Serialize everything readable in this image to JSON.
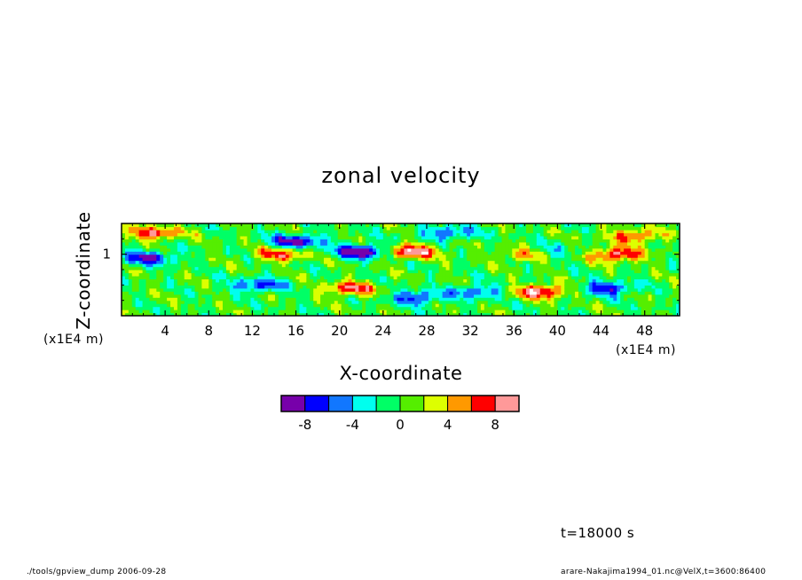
{
  "chart_data": {
    "type": "heatmap",
    "title": "zonal velocity",
    "xlabel": "X-coordinate",
    "ylabel": "Z-coordinate",
    "x_unit": "(x1E4 m)",
    "y_unit": "(x1E4 m)",
    "xlim": [
      0,
      51.2
    ],
    "ylim": [
      0,
      1.5
    ],
    "x_ticks": [
      4,
      8,
      12,
      16,
      20,
      24,
      28,
      32,
      36,
      40,
      44,
      48
    ],
    "x_tick_labels": [
      "4",
      "8",
      "12",
      "16",
      "20",
      "24",
      "28",
      "32",
      "36",
      "40",
      "44",
      "48"
    ],
    "y_ticks": [
      1
    ],
    "y_tick_labels": [
      "1"
    ],
    "colorbar": {
      "levels": [
        -10,
        -8,
        -6,
        -4,
        -2,
        0,
        2,
        4,
        6,
        8,
        10
      ],
      "tick_values": [
        -8,
        -4,
        0,
        4,
        8
      ],
      "tick_labels": [
        "-8",
        "-4",
        "0",
        "4",
        "8"
      ],
      "colors": [
        "#7700aa",
        "#0000ff",
        "#1177ff",
        "#00ffee",
        "#00ff66",
        "#55ee00",
        "#ddff00",
        "#ff9900",
        "#ff0000",
        "#ff9999"
      ],
      "over_color": "#ffffff"
    },
    "time_label": "t=18000 s",
    "features": [
      {
        "x": 26.5,
        "z": 1.05,
        "value": 10
      },
      {
        "x": 37.5,
        "z": 1.0,
        "value": 11
      },
      {
        "x": 22.0,
        "z": 1.05,
        "value": -11
      },
      {
        "x": 38.5,
        "z": 1.02,
        "value": -9
      },
      {
        "x": 14.5,
        "z": 1.0,
        "value": 7
      },
      {
        "x": 21.0,
        "z": 0.45,
        "value": 8
      },
      {
        "x": 38.5,
        "z": 0.4,
        "value": 10
      },
      {
        "x": 45.5,
        "z": 1.0,
        "value": 9
      },
      {
        "x": 2.5,
        "z": 0.95,
        "value": -8
      },
      {
        "x": 12.5,
        "z": 0.5,
        "value": -7
      },
      {
        "x": 16.0,
        "z": 1.22,
        "value": -9
      },
      {
        "x": 27.0,
        "z": 0.3,
        "value": -7
      },
      {
        "x": 32.5,
        "z": 0.4,
        "value": -6
      },
      {
        "x": 44.5,
        "z": 0.45,
        "value": -8
      },
      {
        "x": 3.0,
        "z": 1.35,
        "value": 8
      },
      {
        "x": 30.0,
        "z": 1.35,
        "value": -6
      },
      {
        "x": 47.0,
        "z": 1.3,
        "value": 7
      }
    ]
  },
  "footer": {
    "left": "./tools/gpview_dump  2006-09-28",
    "right": "arare-Nakajima1994_01.nc@VelX,t=3600:86400"
  }
}
